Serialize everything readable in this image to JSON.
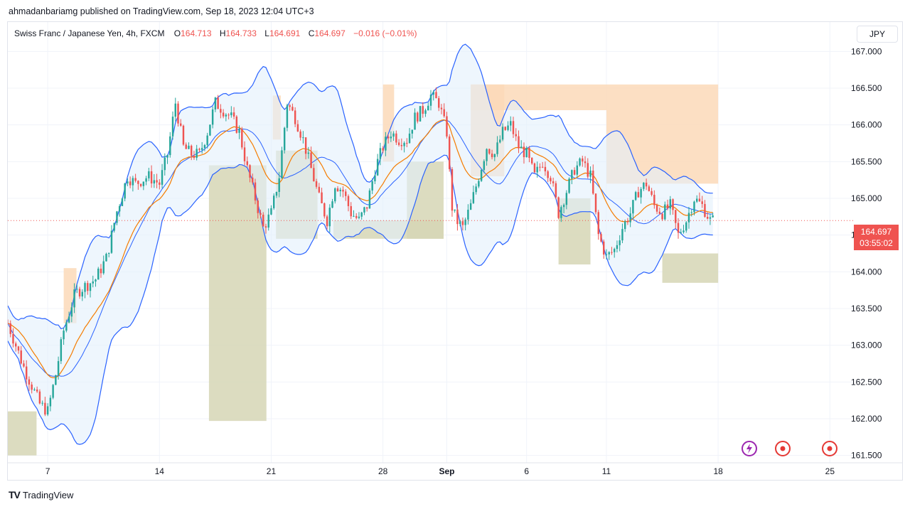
{
  "header": {
    "publisher_line": "ahmadanbariamg published on TradingView.com, Sep 18, 2023 12:04 UTC+3"
  },
  "legend": {
    "symbol": "Swiss Franc / Japanese Yen, 4h, FXCM",
    "open_label": "O",
    "open": "164.713",
    "high_label": "H",
    "high": "164.733",
    "low_label": "L",
    "low": "164.691",
    "close_label": "C",
    "close": "164.697",
    "change": "−0.016 (−0.01%)"
  },
  "currency_button": "JPY",
  "price_tag": {
    "price": "164.697",
    "countdown": "03:55:02"
  },
  "footer": {
    "brand": "TradingView"
  },
  "colors": {
    "up": "#26a69a",
    "down": "#ef5350",
    "bb_line": "#2962ff",
    "bb_fill": "#e3f0fb",
    "ma": "#f57c00",
    "supply_zone": "#fbd9b8",
    "demand_zone": "#d6d6b5"
  },
  "event_icons": [
    "lightning-icon",
    "target-icon",
    "target-icon"
  ],
  "chart_data": {
    "type": "candlestick",
    "title": "",
    "ylim": [
      161.4,
      167.4
    ],
    "y_ticks": [
      161.5,
      162.0,
      162.5,
      163.0,
      163.5,
      164.0,
      164.5,
      165.0,
      165.5,
      166.0,
      166.5,
      167.0
    ],
    "y_tick_labels": [
      "161.500",
      "162.000",
      "162.500",
      "163.000",
      "163.500",
      "164.000",
      "164.500",
      "165.000",
      "165.500",
      "166.000",
      "166.500",
      "167.000"
    ],
    "x_ticks": [
      {
        "label": "7",
        "t": 7
      },
      {
        "label": "14",
        "t": 14
      },
      {
        "label": "21",
        "t": 21
      },
      {
        "label": "28",
        "t": 28
      },
      {
        "label": "Sep",
        "t": 32.0
      },
      {
        "label": "6",
        "t": 37
      },
      {
        "label": "11",
        "t": 42
      },
      {
        "label": "18",
        "t": 49
      },
      {
        "label": "25",
        "t": 56
      }
    ],
    "xlim": [
      4.5,
      57.5
    ],
    "last_price": 164.697,
    "grid": true,
    "anchors": [
      [
        4.5,
        163.3
      ],
      [
        5.5,
        162.7
      ],
      [
        6.5,
        162.2
      ],
      [
        7.0,
        162.1
      ],
      [
        7.5,
        162.6
      ],
      [
        8.0,
        163.2
      ],
      [
        8.7,
        163.7
      ],
      [
        9.3,
        163.8
      ],
      [
        10.0,
        163.9
      ],
      [
        10.7,
        164.2
      ],
      [
        11.3,
        164.8
      ],
      [
        12.0,
        165.3
      ],
      [
        12.5,
        165.2
      ],
      [
        13.3,
        165.3
      ],
      [
        14.0,
        165.2
      ],
      [
        14.5,
        165.6
      ],
      [
        15.0,
        166.3
      ],
      [
        15.5,
        165.7
      ],
      [
        16.0,
        165.6
      ],
      [
        16.5,
        165.6
      ],
      [
        17.0,
        165.9
      ],
      [
        17.5,
        166.3
      ],
      [
        18.0,
        166.2
      ],
      [
        18.5,
        166.1
      ],
      [
        19.0,
        165.9
      ],
      [
        19.5,
        165.4
      ],
      [
        20.0,
        165.0
      ],
      [
        20.5,
        164.6
      ],
      [
        21.0,
        164.8
      ],
      [
        21.5,
        165.3
      ],
      [
        22.0,
        166.3
      ],
      [
        22.5,
        166.1
      ],
      [
        23.0,
        165.8
      ],
      [
        23.5,
        165.4
      ],
      [
        24.0,
        165.0
      ],
      [
        24.5,
        164.7
      ],
      [
        25.0,
        165.2
      ],
      [
        25.5,
        165.1
      ],
      [
        26.0,
        164.8
      ],
      [
        26.5,
        164.7
      ],
      [
        27.0,
        164.9
      ],
      [
        27.5,
        165.4
      ],
      [
        28.0,
        165.7
      ],
      [
        28.5,
        165.9
      ],
      [
        29.0,
        165.8
      ],
      [
        29.5,
        165.8
      ],
      [
        30.0,
        166.1
      ],
      [
        30.5,
        166.2
      ],
      [
        31.0,
        166.4
      ],
      [
        31.5,
        166.3
      ],
      [
        32.0,
        165.9
      ],
      [
        32.3,
        164.9
      ],
      [
        32.6,
        164.7
      ],
      [
        33.0,
        164.6
      ],
      [
        33.5,
        164.9
      ],
      [
        34.0,
        165.3
      ],
      [
        34.5,
        165.7
      ],
      [
        35.0,
        165.6
      ],
      [
        35.5,
        165.9
      ],
      [
        36.0,
        166.0
      ],
      [
        36.5,
        165.7
      ],
      [
        37.0,
        165.6
      ],
      [
        37.5,
        165.3
      ],
      [
        38.0,
        165.5
      ],
      [
        38.5,
        165.3
      ],
      [
        39.0,
        164.8
      ],
      [
        39.5,
        165.1
      ],
      [
        40.0,
        165.4
      ],
      [
        40.5,
        165.5
      ],
      [
        41.0,
        165.3
      ],
      [
        41.5,
        164.5
      ],
      [
        42.0,
        164.2
      ],
      [
        42.5,
        164.3
      ],
      [
        43.0,
        164.6
      ],
      [
        43.5,
        164.8
      ],
      [
        44.0,
        165.1
      ],
      [
        44.5,
        165.2
      ],
      [
        45.0,
        164.9
      ],
      [
        45.5,
        164.8
      ],
      [
        46.0,
        164.9
      ],
      [
        46.5,
        164.5
      ],
      [
        47.0,
        164.7
      ],
      [
        47.5,
        165.0
      ],
      [
        48.0,
        164.9
      ],
      [
        48.5,
        164.7
      ],
      [
        48.8,
        164.697
      ]
    ],
    "zones": [
      {
        "kind": "demand",
        "t0": 4.5,
        "t1": 6.3,
        "y0": 161.5,
        "y1": 162.1
      },
      {
        "kind": "supply",
        "t0": 8.0,
        "t1": 8.8,
        "y0": 163.3,
        "y1": 164.05
      },
      {
        "kind": "demand",
        "t0": 17.1,
        "t1": 20.7,
        "y0": 161.97,
        "y1": 165.45
      },
      {
        "kind": "supply",
        "t0": 21.1,
        "t1": 21.6,
        "y0": 165.8,
        "y1": 166.4
      },
      {
        "kind": "demand",
        "t0": 21.3,
        "t1": 23.9,
        "y0": 164.45,
        "y1": 165.65
      },
      {
        "kind": "supply",
        "t0": 28.0,
        "t1": 28.7,
        "y0": 165.5,
        "y1": 166.55
      },
      {
        "kind": "demand",
        "t0": 24.9,
        "t1": 31.8,
        "y0": 164.45,
        "y1": 164.7
      },
      {
        "kind": "demand",
        "t0": 29.5,
        "t1": 31.8,
        "y0": 164.45,
        "y1": 165.5
      },
      {
        "kind": "supply",
        "t0": 33.5,
        "t1": 49.0,
        "y0": 166.2,
        "y1": 166.55
      },
      {
        "kind": "supply",
        "t0": 33.5,
        "t1": 35.6,
        "y0": 165.3,
        "y1": 166.55
      },
      {
        "kind": "supply",
        "t0": 42.0,
        "t1": 49.0,
        "y0": 165.2,
        "y1": 166.2
      },
      {
        "kind": "demand",
        "t0": 39.0,
        "t1": 41.0,
        "y0": 164.1,
        "y1": 165.0
      },
      {
        "kind": "demand",
        "t0": 45.5,
        "t1": 49.0,
        "y0": 163.85,
        "y1": 164.25
      }
    ]
  }
}
